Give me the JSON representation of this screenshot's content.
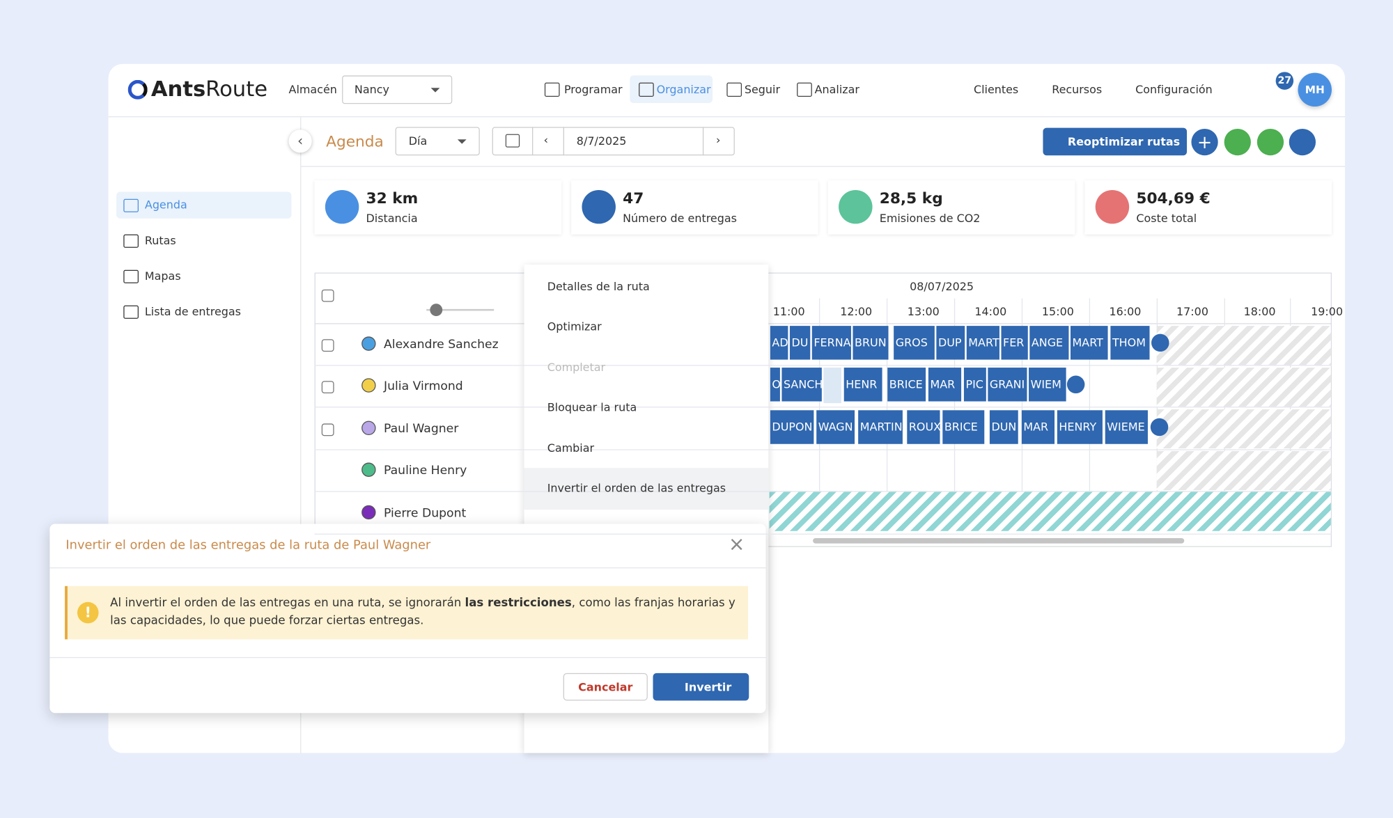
{
  "header": {
    "logo": [
      "Ants",
      "Route"
    ],
    "warehouse_label": "Almacén",
    "warehouse": "Nancy",
    "nav": [
      "Programar",
      "Organizar",
      "Seguir",
      "Analizar"
    ],
    "right_nav": [
      "Clientes",
      "Recursos",
      "Configuración"
    ],
    "notifications": "27",
    "avatar": "MH"
  },
  "toolbar": {
    "title": "Agenda",
    "view": "Día",
    "date": "8/7/2025",
    "reoptimize": "Reoptimizar rutas"
  },
  "sidebar": [
    "Agenda",
    "Rutas",
    "Mapas",
    "Lista de entregas"
  ],
  "stats": [
    {
      "value": "32 km",
      "label": "Distancia"
    },
    {
      "value": "47",
      "label": "Número de entregas"
    },
    {
      "value": "28,5 kg",
      "label": "Emisiones de CO2"
    },
    {
      "value": "504,69 €",
      "label": "Coste total"
    }
  ],
  "schedule": {
    "date": "08/07/2025",
    "hours": [
      "11:00",
      "12:00",
      "13:00",
      "14:00",
      "15:00",
      "16:00",
      "17:00",
      "18:00",
      "19:00"
    ],
    "drivers": [
      "Alexandre Sanchez",
      "Julia Virmond",
      "Paul Wagner",
      "Pauline Henry",
      "Pierre Dupont"
    ],
    "rows": [
      [
        "AD",
        "DU",
        "FERNA",
        "BRUN",
        "GROS",
        "DUP",
        "MART",
        "FER",
        "ANGE",
        "MART",
        "THOM"
      ],
      [
        "O",
        "SANCH",
        "HENR",
        "BRICE",
        "MAR",
        "PIC",
        "GRANI",
        "WIEM"
      ],
      [
        "DUPON",
        "WAGN",
        "MARTIN",
        "ROUX",
        "BRICE",
        "DUN",
        "MAR",
        "HENRY",
        "WIEME"
      ]
    ]
  },
  "context_menu": [
    "Detalles de la ruta",
    "Optimizar",
    "Completar",
    "Bloquear la ruta",
    "Cambiar",
    "Invertir el orden de las entregas"
  ],
  "dialog": {
    "title": "Invertir el orden de las entregas de la ruta de Paul Wagner",
    "warning": [
      "Al invertir el orden de las entregas en una ruta, se ignorarán ",
      "las restricciones",
      ", como las franjas horarias y las capacidades, lo que puede forzar ciertas entregas."
    ],
    "cancel": "Cancelar",
    "confirm": "Invertir"
  }
}
